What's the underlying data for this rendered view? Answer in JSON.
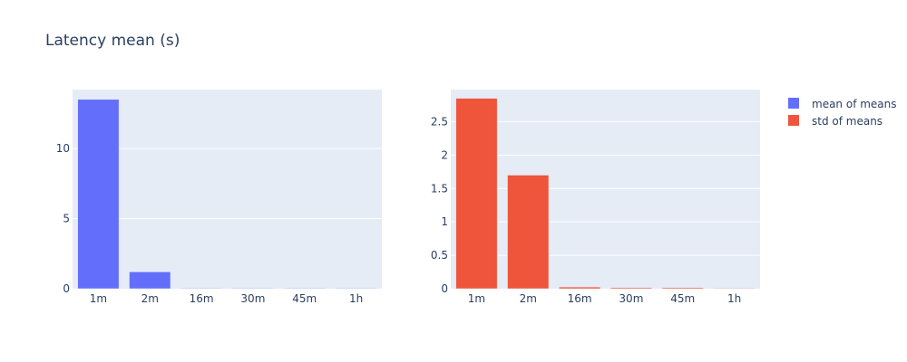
{
  "chart_data": {
    "title": "Latency mean (s)",
    "type": "bar",
    "legend_position": "top-right",
    "grid": true,
    "categories": [
      "1m",
      "2m",
      "16m",
      "30m",
      "45m",
      "1h"
    ],
    "panels": [
      {
        "series": [
          {
            "name": "mean of means",
            "color": "#636efa",
            "values": [
              13.5,
              1.2,
              0.03,
              0.02,
              0.02,
              0.01
            ]
          }
        ],
        "ylim": [
          0,
          14.2
        ],
        "yticks": [
          0,
          5,
          10
        ],
        "ytick_labels": [
          "0",
          "5",
          "10"
        ]
      },
      {
        "series": [
          {
            "name": "std of means",
            "color": "#ef553b",
            "values": [
              2.85,
              1.7,
              0.025,
              0.015,
              0.015,
              0.008
            ]
          }
        ],
        "ylim": [
          0,
          2.98
        ],
        "yticks": [
          0,
          0.5,
          1,
          1.5,
          2,
          2.5
        ],
        "ytick_labels": [
          "0",
          "0.5",
          "1",
          "1.5",
          "2",
          "2.5"
        ]
      }
    ]
  }
}
